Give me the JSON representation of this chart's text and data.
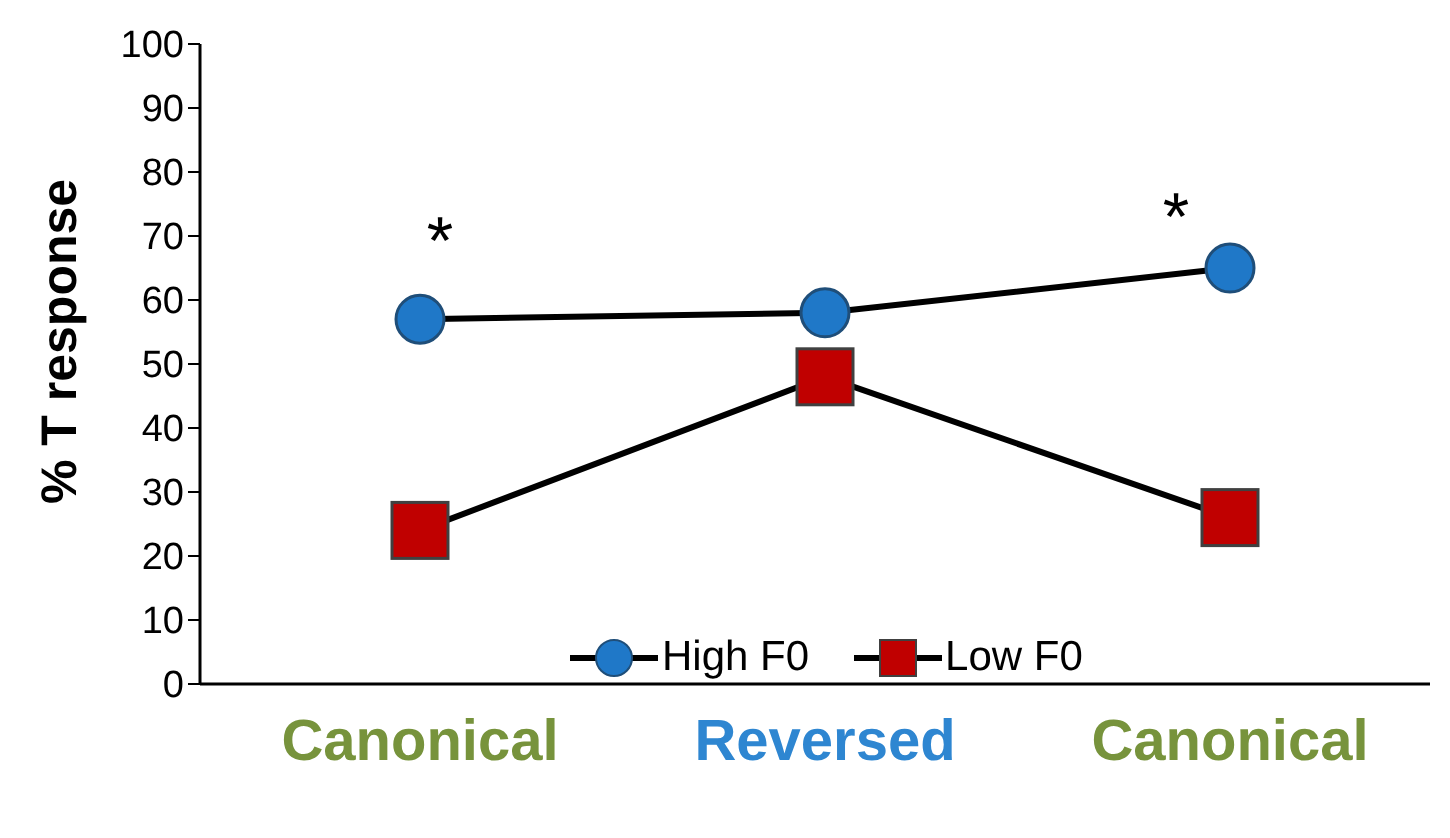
{
  "chart_data": {
    "type": "line",
    "ylabel": "% T response",
    "categories": [
      "Canonical",
      "Reversed",
      "Canonical"
    ],
    "series": [
      {
        "name": "High F0",
        "color": "#1f78c8",
        "marker": "circle",
        "values": [
          57,
          58,
          65
        ]
      },
      {
        "name": "Low F0",
        "color": "#c00000",
        "marker": "square",
        "values": [
          24,
          48,
          26
        ]
      }
    ],
    "ylim": [
      0,
      100
    ],
    "yticks": [
      0,
      10,
      20,
      30,
      40,
      50,
      60,
      70,
      80,
      90,
      100
    ],
    "grid": false,
    "legend": "bottom right",
    "annotations": [
      "*",
      "*"
    ]
  }
}
